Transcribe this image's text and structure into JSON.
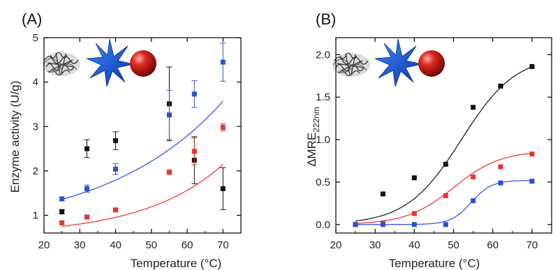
{
  "colors": {
    "black": "#111111",
    "blue": "#2f4fd6",
    "red": "#e8332f",
    "fit_black": "#222222",
    "fit_blue": "#3a55ee",
    "fit_red": "#f23a3a"
  },
  "icons": [
    "protein-structure-icon",
    "blue-star-icon",
    "red-sphere-icon"
  ],
  "chart_data": [
    {
      "type": "scatter",
      "panel_label": "(A)",
      "xlabel": "Temperature (°C)",
      "ylabel": "Enzyme activity (U/g)",
      "xlim": [
        20,
        75
      ],
      "ylim": [
        0.6,
        5.0
      ],
      "xticks": [
        20,
        30,
        40,
        50,
        60,
        70
      ],
      "yticks": [
        1,
        2,
        3,
        4,
        5
      ],
      "grid": false,
      "series": [
        {
          "color_key": "black",
          "x": [
            25,
            32,
            40,
            55,
            62,
            70
          ],
          "y": [
            1.08,
            2.5,
            2.68,
            3.51,
            2.24,
            1.6
          ],
          "err": [
            0.05,
            0.2,
            0.2,
            0.83,
            0.53,
            0.47
          ]
        },
        {
          "color_key": "blue",
          "x": [
            25,
            32,
            40,
            55,
            62,
            70
          ],
          "y": [
            1.37,
            1.6,
            2.04,
            3.26,
            3.73,
            4.45
          ],
          "err": [
            0.04,
            0.08,
            0.12,
            0.55,
            0.3,
            0.43
          ],
          "fit": {
            "x": [
              25,
              70
            ],
            "curve": "exp",
            "a": 0.6,
            "b": 0.02914,
            "y0_at": 0
          }
        },
        {
          "color_key": "red",
          "x": [
            25,
            32,
            40,
            55,
            62,
            70
          ],
          "y": [
            0.83,
            0.96,
            1.12,
            1.97,
            2.44,
            2.98
          ],
          "err": [
            0.03,
            0.03,
            0.04,
            0.05,
            0.3,
            0.08
          ],
          "fit": {
            "x": [
              25,
              70
            ],
            "curve": "exp",
            "a": 0.261,
            "b": 0.03485
          }
        }
      ]
    },
    {
      "type": "scatter",
      "panel_label": "(B)",
      "xlabel": "Temperature (°C)",
      "ylabel": "ΔMRE",
      "ylabel_sub": "222nm",
      "xlim": [
        20,
        75
      ],
      "ylim": [
        -0.1,
        2.2
      ],
      "xticks": [
        20,
        30,
        40,
        50,
        60,
        70
      ],
      "yticks": [
        0.0,
        0.5,
        1.0,
        1.5,
        2.0
      ],
      "ytick_labels": [
        "0.0",
        "0.5",
        "1.0",
        "1.5",
        "2.0"
      ],
      "grid": false,
      "series": [
        {
          "color_key": "black",
          "x": [
            25,
            32,
            40,
            48,
            55,
            62,
            70
          ],
          "y": [
            0.0,
            0.36,
            0.55,
            0.71,
            1.38,
            1.63,
            1.86
          ],
          "fit": {
            "x": [
              25,
              70
            ],
            "curve": "sigmoid",
            "bottom": 0.0,
            "top": 2.0,
            "mid": 52,
            "k": 7.0
          }
        },
        {
          "color_key": "red",
          "x": [
            25,
            32,
            40,
            48,
            55,
            62,
            70
          ],
          "y": [
            0.0,
            0.02,
            0.13,
            0.34,
            0.56,
            0.68,
            0.83
          ],
          "fit": {
            "x": [
              25,
              70
            ],
            "curve": "sigmoid",
            "bottom": 0.0,
            "top": 0.87,
            "mid": 50,
            "k": 6.0
          }
        },
        {
          "color_key": "blue",
          "x": [
            25,
            32,
            40,
            48,
            55,
            62,
            70
          ],
          "y": [
            0.0,
            0.0,
            0.0,
            0.0,
            0.28,
            0.49,
            0.51
          ],
          "fit": {
            "x": [
              25,
              70
            ],
            "curve": "sigmoid",
            "bottom": 0.0,
            "top": 0.52,
            "mid": 54.5,
            "k": 2.6
          }
        }
      ]
    }
  ]
}
